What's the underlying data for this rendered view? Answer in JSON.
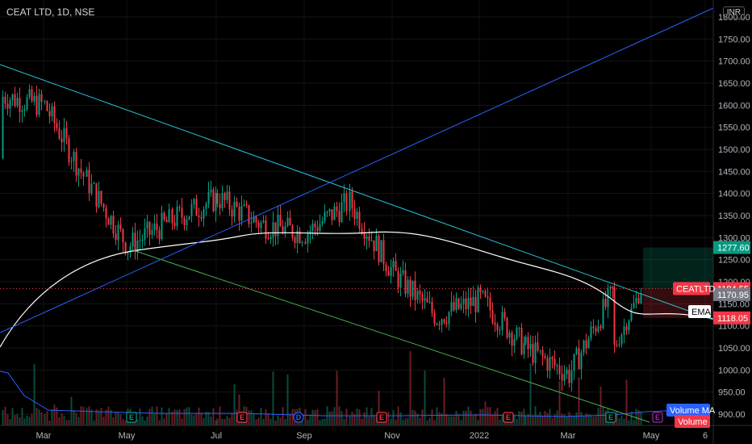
{
  "header": {
    "symbol": "CEAT LTD, 1D, NSE",
    "currency": "INR"
  },
  "chart_data": {
    "type": "candlestick",
    "x_ticks": [
      "Mar",
      "May",
      "Jul",
      "Sep",
      "Nov",
      "2022",
      "Mar",
      "May",
      "6"
    ],
    "y_ticks": [
      900,
      950,
      1000,
      1050,
      1100,
      1150,
      1200,
      1250,
      1300,
      1350,
      1400,
      1450,
      1500,
      1550,
      1600,
      1650,
      1700,
      1750,
      1800
    ],
    "y_range": [
      880,
      1830
    ],
    "price_labels": [
      {
        "text": "1277.60",
        "value": 1277.6,
        "color": "#089981"
      },
      {
        "text": "1184.55",
        "value": 1184.55,
        "color": "#f23645"
      },
      {
        "text": "1170.95",
        "value": 1170.95,
        "color": "#787b86"
      },
      {
        "text": "1118.05",
        "value": 1118.05,
        "color": "#f23645"
      }
    ],
    "tags": [
      {
        "text": "CEATLTD",
        "color": "#f23645"
      },
      {
        "text": "EMA",
        "color": "#ffffff"
      },
      {
        "text": "Volume MA",
        "color": "#2962ff"
      },
      {
        "text": "Volume",
        "color": "#f23645"
      }
    ],
    "events": [
      "E",
      "E",
      "D",
      "E",
      "E",
      "E",
      "E"
    ],
    "monthly_close": [
      {
        "m": "Feb-21",
        "v": 1620
      },
      {
        "m": "Mar-21",
        "v": 1600
      },
      {
        "m": "Apr-21",
        "v": 1430
      },
      {
        "m": "May-21",
        "v": 1280
      },
      {
        "m": "Jun-21",
        "v": 1340
      },
      {
        "m": "Jul-21",
        "v": 1390
      },
      {
        "m": "Aug-21",
        "v": 1330
      },
      {
        "m": "Sep-21",
        "v": 1310
      },
      {
        "m": "Oct-21",
        "v": 1380
      },
      {
        "m": "Nov-21",
        "v": 1220
      },
      {
        "m": "Dec-21",
        "v": 1120
      },
      {
        "m": "Jan-22",
        "v": 1160
      },
      {
        "m": "Feb-22",
        "v": 1050
      },
      {
        "m": "Mar-22",
        "v": 990
      },
      {
        "m": "Apr-22",
        "v": 1185
      }
    ]
  }
}
